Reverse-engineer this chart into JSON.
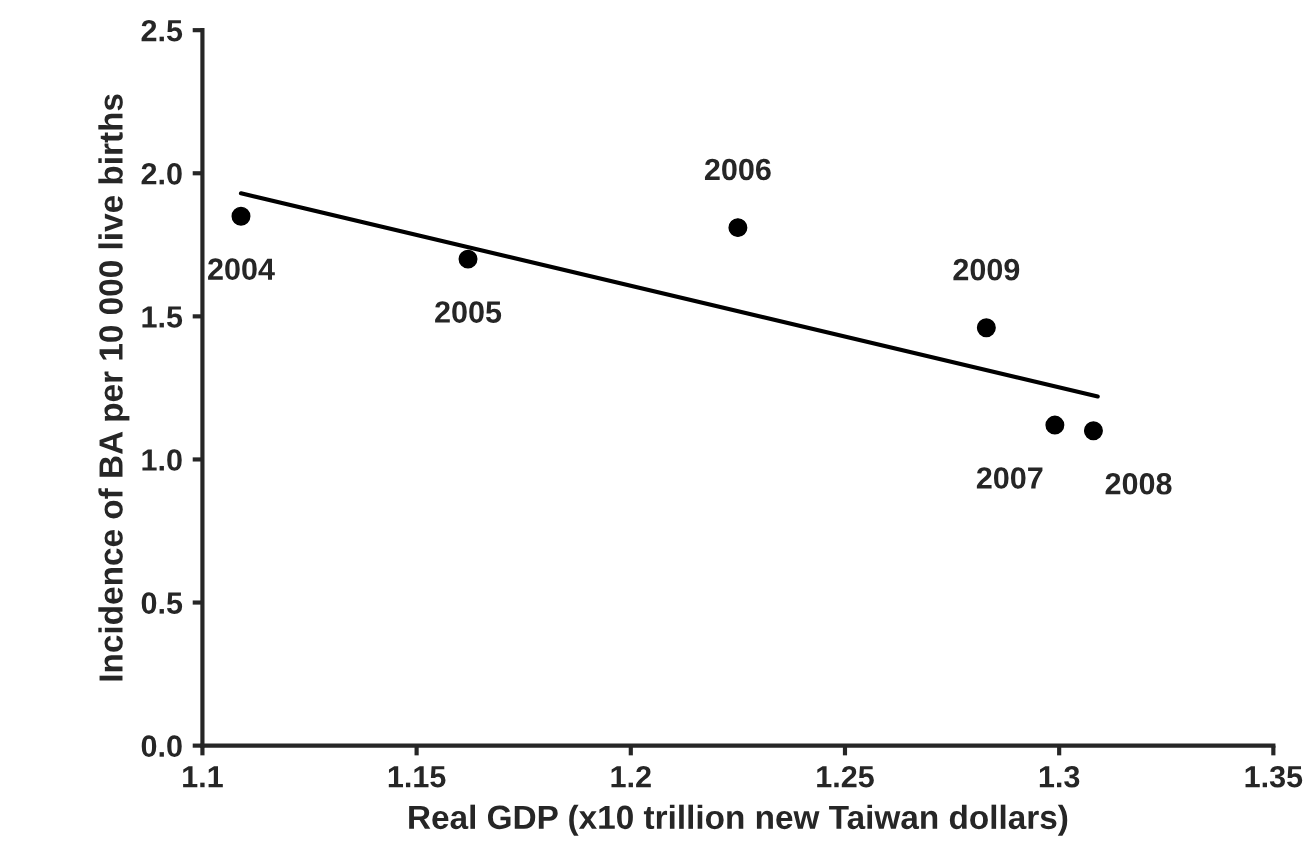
{
  "chart_data": {
    "type": "scatter",
    "xlabel": "Real GDP (x10 trillion new Taiwan dollars)",
    "ylabel": "Incidence of BA per 10 000 live births",
    "x": [
      1.109,
      1.162,
      1.225,
      1.299,
      1.308,
      1.283
    ],
    "series": [
      {
        "color": "#000000",
        "marker": "circle",
        "values": [
          1.85,
          1.7,
          1.81,
          1.12,
          1.1,
          1.46
        ]
      },
      {
        "type": "line",
        "color": "#000000",
        "line_style": "solid",
        "x": [
          1.109,
          1.309
        ],
        "values": [
          1.93,
          1.22
        ]
      }
    ],
    "annotations": [
      {
        "text": "2004",
        "x": 1.109,
        "y": 1.85
      },
      {
        "text": "2005",
        "x": 1.162,
        "y": 1.7
      },
      {
        "text": "2006",
        "x": 1.225,
        "y": 1.81
      },
      {
        "text": "2007",
        "x": 1.299,
        "y": 1.12
      },
      {
        "text": "2008",
        "x": 1.308,
        "y": 1.1
      },
      {
        "text": "2009",
        "x": 1.283,
        "y": 1.46
      }
    ],
    "xlim": [
      1.1,
      1.35
    ],
    "xticks": [
      {
        "value": 1.1,
        "label": "1.1"
      },
      {
        "value": 1.15,
        "label": "1.15"
      },
      {
        "value": 1.2,
        "label": "1.2"
      },
      {
        "value": 1.25,
        "label": "1.25"
      },
      {
        "value": 1.3,
        "label": "1.3"
      },
      {
        "value": 1.35,
        "label": "1.35"
      }
    ],
    "ylim": [
      0,
      2.5
    ],
    "yticks": [
      {
        "value": 0,
        "label": "0.0"
      },
      {
        "value": 0.5,
        "label": "0.5"
      },
      {
        "value": 1,
        "label": "1.0"
      },
      {
        "value": 1.5,
        "label": "1.5"
      },
      {
        "value": 2,
        "label": "2.0"
      },
      {
        "value": 2.5,
        "label": "2.5"
      }
    ],
    "grid": false,
    "legend": false
  }
}
